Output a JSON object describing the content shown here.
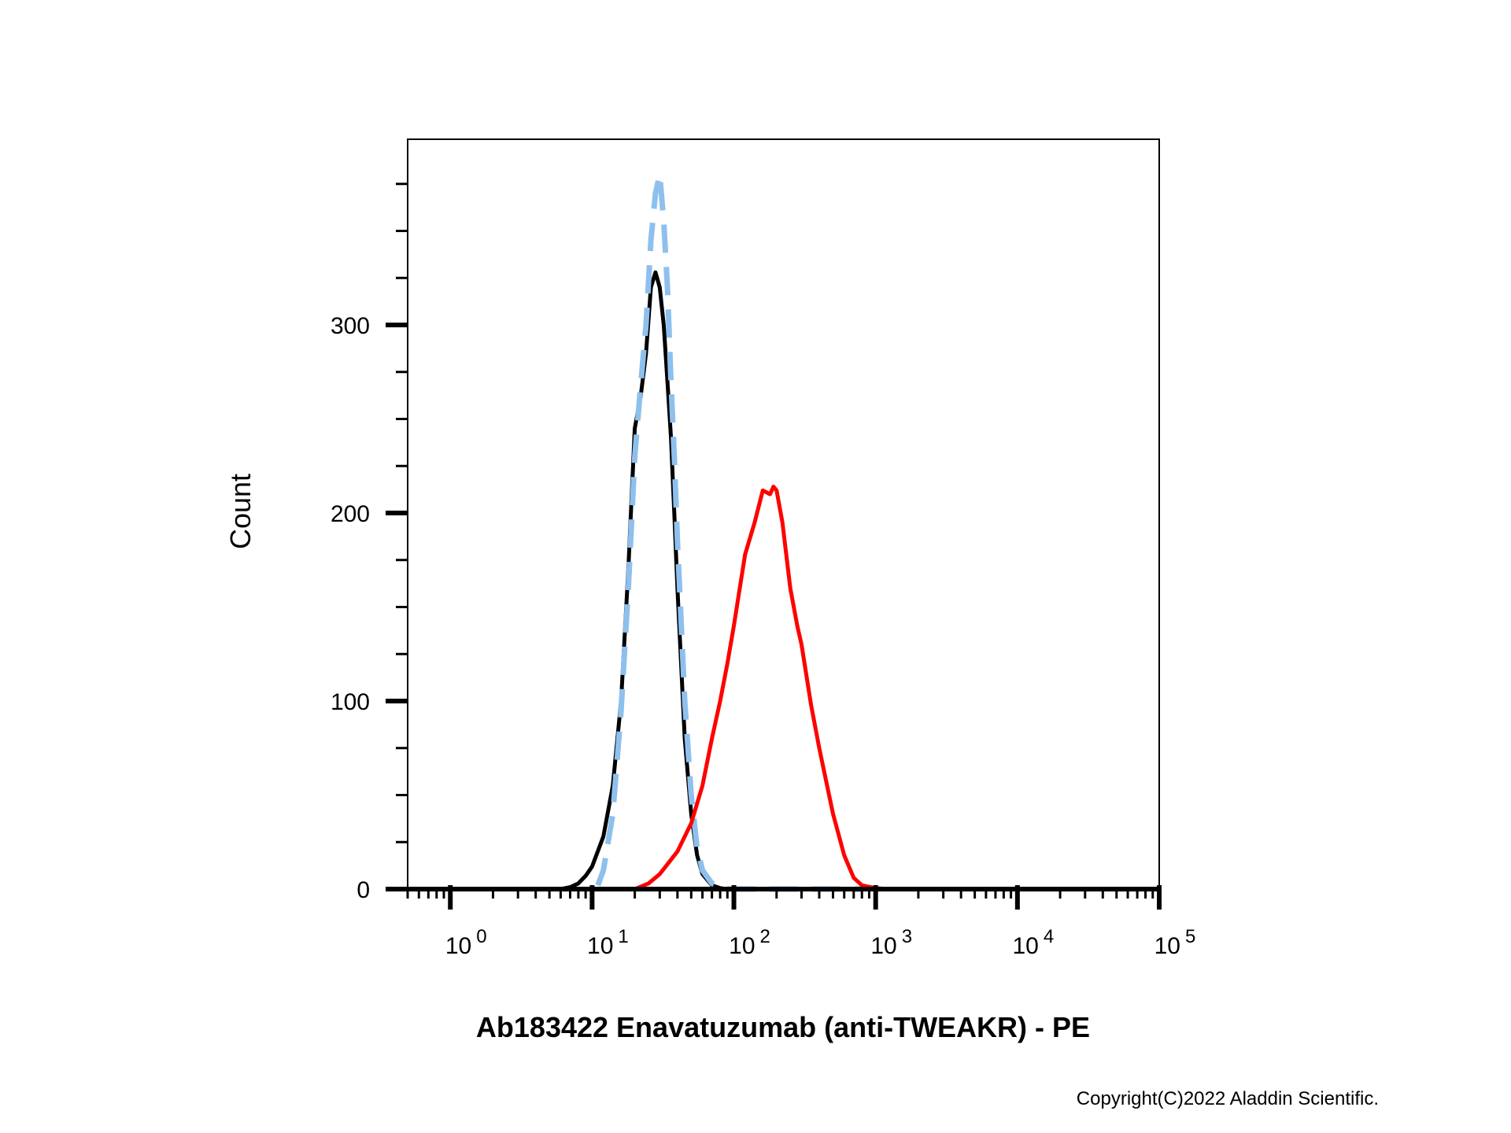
{
  "chart_data": {
    "type": "line",
    "title": "",
    "xlabel": "Ab183422 Enavatuzumab (anti-TWEAKR) - PE",
    "ylabel": "Count",
    "x_scale": "log",
    "xlim": [
      0.5,
      100000
    ],
    "ylim": [
      0,
      380
    ],
    "grid": false,
    "legend": "none",
    "yticks": [
      {
        "value": 0,
        "label": "0"
      },
      {
        "value": 100,
        "label": "100"
      },
      {
        "value": 200,
        "label": "200"
      },
      {
        "value": 300,
        "label": "300"
      }
    ],
    "xticks": [
      {
        "value": 1,
        "base": "10",
        "exp": "0"
      },
      {
        "value": 10,
        "base": "10",
        "exp": "1"
      },
      {
        "value": 100,
        "base": "10",
        "exp": "2"
      },
      {
        "value": 1000,
        "base": "10",
        "exp": "3"
      },
      {
        "value": 10000,
        "base": "10",
        "exp": "4"
      },
      {
        "value": 100000,
        "base": "10",
        "exp": "5"
      }
    ],
    "series": [
      {
        "color": "#000000",
        "style": "solid",
        "x": [
          0.5,
          6,
          7,
          8,
          9,
          10,
          12,
          14,
          16,
          18,
          20,
          22,
          24,
          26,
          28,
          30,
          32,
          34,
          36,
          38,
          40,
          45,
          50,
          55,
          60,
          70,
          80,
          90,
          100,
          150,
          200,
          300,
          1000,
          100000
        ],
        "y": [
          0,
          0,
          1,
          3,
          7,
          12,
          28,
          55,
          100,
          170,
          245,
          262,
          285,
          320,
          328,
          320,
          300,
          270,
          240,
          200,
          160,
          80,
          40,
          18,
          8,
          2,
          0.5,
          0,
          0,
          0,
          0,
          0,
          0,
          0
        ]
      },
      {
        "color": "#8ec0ee",
        "style": "dashed",
        "x": [
          11,
          12,
          14,
          16,
          18,
          20,
          22,
          24,
          26,
          28,
          30,
          32,
          34,
          36,
          38,
          40,
          45,
          50,
          55,
          60,
          70,
          80,
          90,
          100,
          150,
          300,
          800
        ],
        "y": [
          2,
          10,
          40,
          95,
          160,
          230,
          268,
          300,
          345,
          370,
          380,
          355,
          320,
          270,
          230,
          185,
          100,
          50,
          22,
          10,
          3,
          1,
          0,
          0,
          0,
          0,
          0
        ]
      },
      {
        "color": "#ff0000",
        "style": "solid",
        "x": [
          0.5,
          20,
          25,
          30,
          40,
          50,
          60,
          70,
          80,
          90,
          100,
          110,
          120,
          140,
          160,
          180,
          190,
          200,
          220,
          250,
          280,
          300,
          350,
          400,
          500,
          600,
          700,
          800,
          1000,
          1200,
          1500,
          100000
        ],
        "y": [
          0,
          0,
          3,
          8,
          20,
          35,
          55,
          80,
          100,
          120,
          140,
          160,
          178,
          195,
          212,
          210,
          214,
          212,
          195,
          160,
          140,
          130,
          98,
          75,
          40,
          18,
          6,
          2,
          0.5,
          0,
          0,
          0
        ]
      }
    ]
  },
  "copyright": "Copyright(C)2022 Aladdin Scientific."
}
